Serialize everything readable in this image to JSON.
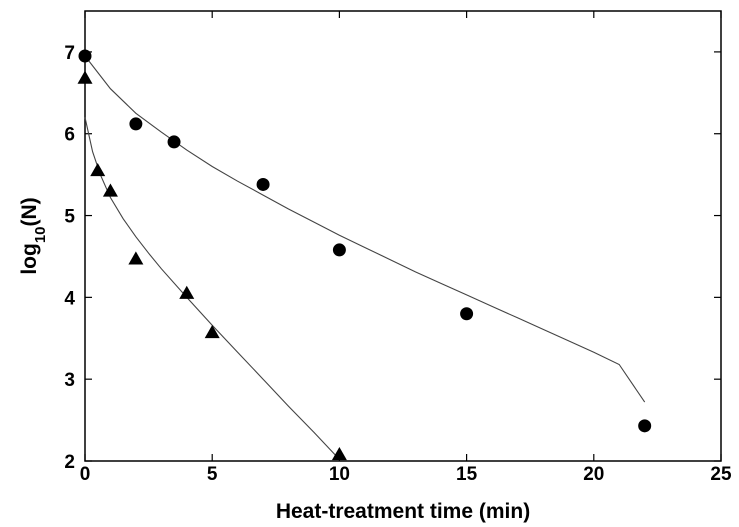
{
  "chart_data": {
    "type": "scatter",
    "title": "",
    "xlabel": "Heat-treatment time (min)",
    "ylabel_main": "log",
    "ylabel_sub": "10",
    "ylabel_tail": "(N)",
    "xlim": [
      0,
      25
    ],
    "ylim": [
      2,
      7.5
    ],
    "xticks": [
      0,
      5,
      10,
      15,
      20,
      25
    ],
    "yticks": [
      2,
      3,
      4,
      5,
      6,
      7
    ],
    "grid": false,
    "legend": "none",
    "series": [
      {
        "marker": "circle",
        "color": "#000000",
        "points": [
          [
            0,
            6.95
          ],
          [
            2,
            6.12
          ],
          [
            3.5,
            5.9
          ],
          [
            7,
            5.38
          ],
          [
            10,
            4.58
          ],
          [
            15,
            3.8
          ],
          [
            22,
            2.43
          ]
        ],
        "fit": [
          [
            0,
            6.95
          ],
          [
            1,
            6.55
          ],
          [
            2,
            6.25
          ],
          [
            3,
            6.02
          ],
          [
            4,
            5.8
          ],
          [
            5,
            5.6
          ],
          [
            6,
            5.42
          ],
          [
            7,
            5.25
          ],
          [
            8,
            5.08
          ],
          [
            9,
            4.92
          ],
          [
            10,
            4.76
          ],
          [
            11,
            4.61
          ],
          [
            12,
            4.46
          ],
          [
            13,
            4.31
          ],
          [
            14,
            4.17
          ],
          [
            15,
            4.03
          ],
          [
            16,
            3.89
          ],
          [
            17,
            3.75
          ],
          [
            18,
            3.61
          ],
          [
            19,
            3.47
          ],
          [
            20,
            3.33
          ],
          [
            21,
            3.18
          ],
          [
            22,
            2.72
          ]
        ]
      },
      {
        "marker": "triangle",
        "color": "#000000",
        "points": [
          [
            0,
            6.68
          ],
          [
            0.5,
            5.55
          ],
          [
            1,
            5.3
          ],
          [
            2,
            4.47
          ],
          [
            4,
            4.05
          ],
          [
            5,
            3.57
          ],
          [
            10,
            2.08
          ]
        ],
        "fit": [
          [
            0,
            6.2
          ],
          [
            0.3,
            5.78
          ],
          [
            0.6,
            5.5
          ],
          [
            1,
            5.22
          ],
          [
            1.5,
            4.96
          ],
          [
            2,
            4.74
          ],
          [
            2.5,
            4.54
          ],
          [
            3,
            4.35
          ],
          [
            4,
            4.0
          ],
          [
            5,
            3.66
          ],
          [
            6,
            3.33
          ],
          [
            7,
            3.0
          ],
          [
            8,
            2.67
          ],
          [
            9,
            2.35
          ],
          [
            10,
            2.02
          ]
        ]
      }
    ]
  }
}
